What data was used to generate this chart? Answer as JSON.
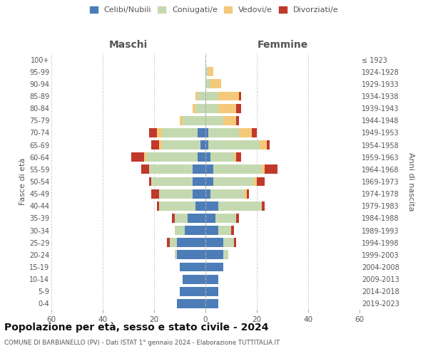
{
  "age_groups": [
    "100+",
    "95-99",
    "90-94",
    "85-89",
    "80-84",
    "75-79",
    "70-74",
    "65-69",
    "60-64",
    "55-59",
    "50-54",
    "45-49",
    "40-44",
    "35-39",
    "30-34",
    "25-29",
    "20-24",
    "15-19",
    "10-14",
    "5-9",
    "0-4"
  ],
  "birth_years": [
    "≤ 1923",
    "1924-1928",
    "1929-1933",
    "1934-1938",
    "1939-1943",
    "1944-1948",
    "1949-1953",
    "1954-1958",
    "1959-1963",
    "1964-1968",
    "1969-1973",
    "1974-1978",
    "1979-1983",
    "1984-1988",
    "1989-1993",
    "1994-1998",
    "1999-2003",
    "2004-2008",
    "2009-2013",
    "2014-2018",
    "2019-2023"
  ],
  "male": {
    "celibi": [
      0,
      0,
      0,
      0,
      0,
      0,
      3,
      2,
      3,
      5,
      5,
      5,
      4,
      7,
      8,
      11,
      11,
      10,
      9,
      10,
      11
    ],
    "coniugati": [
      0,
      0,
      0,
      3,
      4,
      9,
      14,
      15,
      20,
      17,
      16,
      13,
      14,
      5,
      4,
      3,
      1,
      0,
      0,
      0,
      0
    ],
    "vedovi": [
      0,
      0,
      0,
      1,
      1,
      1,
      2,
      1,
      1,
      0,
      0,
      0,
      0,
      0,
      0,
      0,
      0,
      0,
      0,
      0,
      0
    ],
    "divorziati": [
      0,
      0,
      0,
      0,
      0,
      0,
      3,
      3,
      5,
      3,
      1,
      3,
      1,
      1,
      0,
      1,
      0,
      0,
      0,
      0,
      0
    ]
  },
  "female": {
    "nubili": [
      0,
      0,
      0,
      0,
      0,
      0,
      1,
      1,
      2,
      3,
      3,
      2,
      5,
      4,
      5,
      7,
      7,
      7,
      5,
      5,
      5
    ],
    "coniugate": [
      0,
      1,
      2,
      5,
      5,
      7,
      12,
      20,
      9,
      19,
      16,
      13,
      17,
      8,
      5,
      4,
      2,
      0,
      0,
      0,
      0
    ],
    "vedove": [
      0,
      2,
      4,
      8,
      7,
      5,
      5,
      3,
      1,
      1,
      1,
      1,
      0,
      0,
      0,
      0,
      0,
      0,
      0,
      0,
      0
    ],
    "divorziate": [
      0,
      0,
      0,
      1,
      2,
      1,
      2,
      1,
      2,
      5,
      3,
      1,
      1,
      1,
      1,
      1,
      0,
      0,
      0,
      0,
      0
    ]
  },
  "colors": {
    "celibi_nubili": "#4d7db8",
    "coniugati": "#c5d9b0",
    "vedovi": "#f5c97a",
    "divorziati": "#c0392b"
  },
  "xlim": 60,
  "title": "Popolazione per età, sesso e stato civile - 2024",
  "subtitle": "COMUNE DI BARBIANELLO (PV) - Dati ISTAT 1° gennaio 2024 - Elaborazione TUTTITALIA.IT",
  "xlabel_left": "Maschi",
  "xlabel_right": "Femmine",
  "ylabel_left": "Fasce di età",
  "ylabel_right": "Anni di nascita",
  "background_color": "#ffffff",
  "grid_color": "#cccccc",
  "bar_height": 0.75
}
